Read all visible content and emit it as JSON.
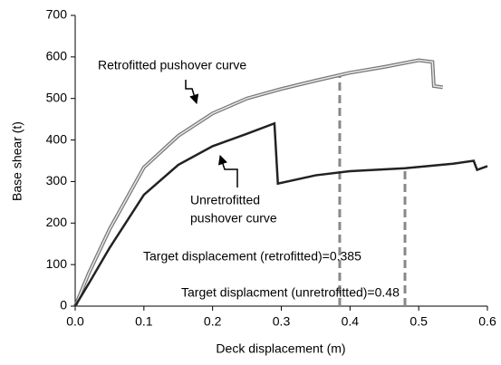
{
  "chart_data": {
    "type": "line",
    "xlabel": "Deck displacement (m)",
    "ylabel": "Base shear (t)",
    "xlim": [
      0,
      0.6
    ],
    "ylim": [
      0,
      700
    ],
    "xticks": [
      {
        "value": 0,
        "label": "0.0"
      },
      0.1,
      0.2,
      0.3,
      0.4,
      0.5,
      0.6
    ],
    "yticks": [
      0,
      100,
      200,
      300,
      400,
      500,
      600,
      700
    ],
    "series": [
      {
        "color": "#777777",
        "x": [
          0,
          0.02,
          0.05,
          0.1,
          0.15,
          0.2,
          0.25,
          0.3,
          0.35,
          0.4,
          0.45,
          0.5,
          0.52,
          0.522,
          0.535
        ],
        "values": [
          0,
          80,
          185,
          334,
          410,
          464,
          500,
          523,
          543,
          562,
          576,
          592,
          588,
          530,
          527
        ]
      },
      {
        "color": "#222222",
        "x": [
          0,
          0.02,
          0.05,
          0.1,
          0.15,
          0.2,
          0.25,
          0.29,
          0.295,
          0.35,
          0.4,
          0.48,
          0.55,
          0.58,
          0.585,
          0.6
        ],
        "values": [
          0,
          55,
          140,
          268,
          340,
          385,
          415,
          440,
          295,
          315,
          325,
          332,
          343,
          350,
          328,
          337
        ]
      }
    ],
    "targets": [
      {
        "x": 0.385,
        "y": 557,
        "label": "Target displacement (retrofitted)=0.385"
      },
      {
        "x": 0.48,
        "y": 333,
        "label": "Target displacment (unretrofitted)=0.48"
      }
    ],
    "annotations": [
      {
        "lines": [
          "Retrofitted pushover curve"
        ]
      },
      {
        "lines": [
          "Unretrofitted",
          "pushover curve"
        ]
      }
    ]
  }
}
